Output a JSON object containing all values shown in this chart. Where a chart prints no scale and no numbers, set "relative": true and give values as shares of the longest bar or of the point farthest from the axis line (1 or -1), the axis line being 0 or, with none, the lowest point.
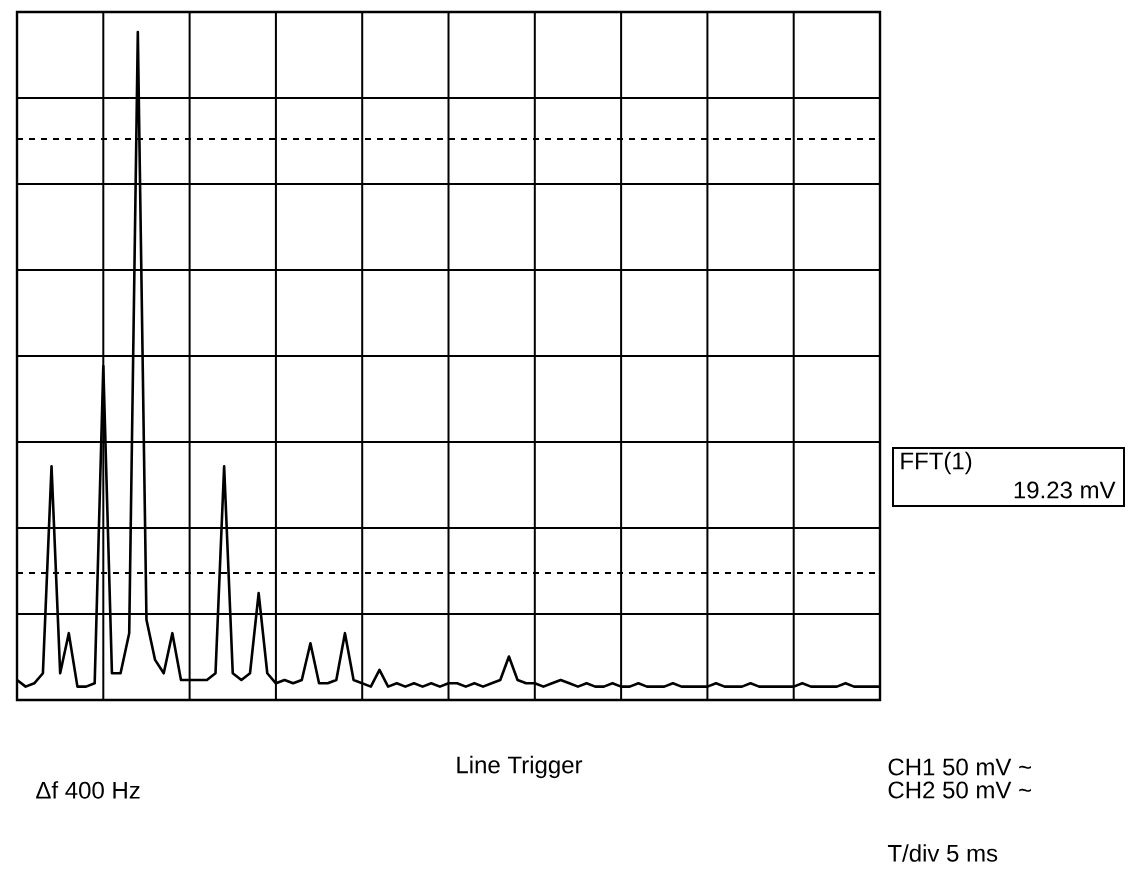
{
  "chart_data": {
    "type": "line",
    "relative": true,
    "color": "#000000",
    "line_style": "solid",
    "grid": true,
    "categories": [
      null,
      null,
      null,
      null,
      null,
      null,
      null,
      null,
      null,
      null,
      null,
      null,
      null,
      null,
      null,
      null,
      null,
      null,
      null,
      null,
      null,
      null,
      null,
      null,
      null,
      null,
      null,
      null,
      null,
      null,
      null,
      null,
      null,
      null,
      null,
      null,
      null,
      null,
      null,
      null,
      null,
      null,
      null,
      null,
      null,
      null,
      null,
      null,
      null,
      null,
      null,
      null,
      null,
      null,
      null,
      null,
      null,
      null,
      null,
      null,
      null,
      null,
      null,
      null,
      null,
      null,
      null,
      null,
      null,
      null,
      null,
      null,
      null,
      null,
      null,
      null,
      null,
      null,
      null,
      null,
      null,
      null,
      null,
      null,
      null,
      null,
      null,
      null,
      null,
      null,
      null,
      null,
      null,
      null,
      null,
      null,
      null,
      null,
      null,
      null,
      null
    ],
    "values": [
      0.03,
      0.02,
      0.025,
      0.04,
      0.35,
      0.04,
      0.1,
      0.02,
      0.02,
      0.025,
      0.5,
      0.04,
      0.04,
      0.1,
      1.0,
      0.12,
      0.06,
      0.04,
      0.1,
      0.03,
      0.03,
      0.03,
      0.03,
      0.04,
      0.35,
      0.04,
      0.03,
      0.04,
      0.16,
      0.04,
      0.025,
      0.03,
      0.025,
      0.03,
      0.085,
      0.025,
      0.025,
      0.03,
      0.1,
      0.03,
      0.025,
      0.02,
      0.045,
      0.02,
      0.025,
      0.02,
      0.025,
      0.02,
      0.025,
      0.02,
      0.025,
      0.025,
      0.02,
      0.025,
      0.02,
      0.025,
      0.03,
      0.065,
      0.03,
      0.025,
      0.025,
      0.02,
      0.025,
      0.03,
      0.025,
      0.02,
      0.025,
      0.02,
      0.02,
      0.025,
      0.02,
      0.02,
      0.025,
      0.02,
      0.02,
      0.02,
      0.025,
      0.02,
      0.02,
      0.02,
      0.02,
      0.025,
      0.02,
      0.02,
      0.02,
      0.025,
      0.02,
      0.02,
      0.02,
      0.02,
      0.02,
      0.025,
      0.02,
      0.02,
      0.02,
      0.02,
      0.025,
      0.02,
      0.02,
      0.02,
      0.02
    ],
    "ref_lines": [
      {
        "axis": "y",
        "value": 0.84,
        "line_style": "dashed"
      },
      {
        "axis": "y",
        "value": 0.19,
        "line_style": "dashed"
      }
    ],
    "annotations": [
      "FFT(1)",
      "19.23 mV",
      "Δf  400 Hz",
      "Line Trigger",
      "CH1  50 mV  ~",
      "CH2  50 mV  ~",
      "T/div  5 ms"
    ]
  }
}
